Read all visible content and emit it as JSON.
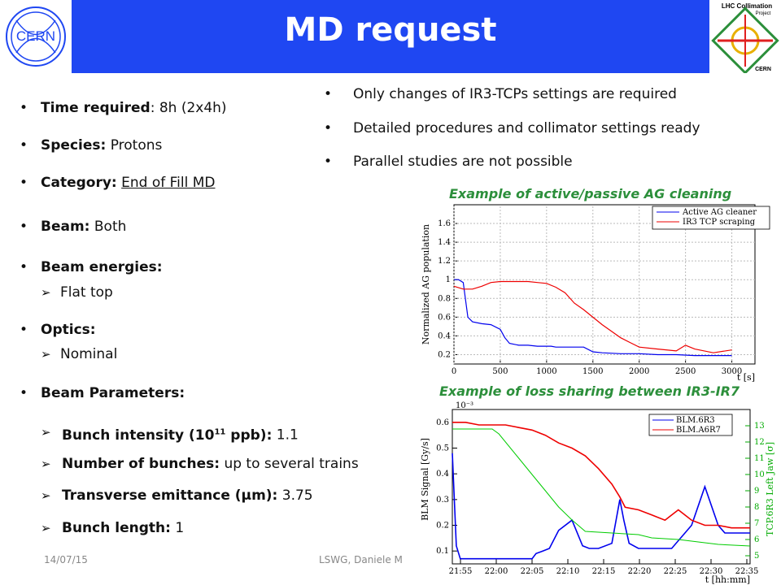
{
  "header": {
    "title": "MD request"
  },
  "logos": {
    "left_text": "CERN",
    "right_line1": "LHC Collimation",
    "right_line2": "Project",
    "right_line3": "CERN"
  },
  "left_list": {
    "time_label": "Time required",
    "time_value": ": 8h (2x4h)",
    "species_label": "Species:",
    "species_value": " Protons",
    "category_label": "Category:",
    "category_value": "End of Fill MD",
    "beam_label": "Beam:",
    "beam_value": " Both",
    "energies_label": "Beam energies:",
    "energies_sub": "Flat top",
    "optics_label": "Optics:",
    "optics_sub": "Nominal",
    "params_label": "Beam Parameters:",
    "bunch_int_label": "Bunch intensity (10",
    "bunch_int_sup": "11",
    "bunch_int_label2": " ppb):",
    "bunch_int_value": " 1.1",
    "nbunch_label": "Number of bunches:",
    "nbunch_value": " up to several trains",
    "emit_label": "Transverse emittance (μm):",
    "emit_value": " 3.75",
    "blen_label": "Bunch length:",
    "blen_value": " 1"
  },
  "right_list": [
    "Only changes of IR3-TCPs settings are required",
    "Detailed procedures and collimator settings ready",
    "Parallel studies are not possible"
  ],
  "footer": {
    "date": "14/07/15",
    "author": "LSWG, Daniele M"
  },
  "colors": {
    "banner": "#1f47f2",
    "caption": "#2c8f3b",
    "series_blue": "#0000ee",
    "series_red": "#ee0000",
    "series_green": "#00cc00"
  },
  "chart_data": [
    {
      "type": "line",
      "title": "Example of active/passive AG cleaning",
      "xlabel": "t [s]",
      "ylabel": "Normalized AG population",
      "xlim": [
        0,
        3250
      ],
      "ylim": [
        0.1,
        1.8
      ],
      "x_ticks": [
        0,
        500,
        1000,
        1500,
        2000,
        2500,
        3000
      ],
      "y_ticks": [
        0.2,
        0.4,
        0.6,
        0.8,
        1,
        1.2,
        1.4,
        1.6
      ],
      "legend": "top-right",
      "series": [
        {
          "name": "Active AG cleaner",
          "color": "#0000ee",
          "x": [
            0,
            50,
            100,
            150,
            200,
            300,
            400,
            500,
            550,
            600,
            700,
            800,
            900,
            1000,
            1050,
            1100,
            1200,
            1300,
            1400,
            1500,
            1600,
            1800,
            2000,
            2200,
            2400,
            2600,
            2800,
            3000
          ],
          "y": [
            1.0,
            1.0,
            0.97,
            0.6,
            0.55,
            0.53,
            0.52,
            0.47,
            0.38,
            0.32,
            0.3,
            0.3,
            0.29,
            0.29,
            0.29,
            0.28,
            0.28,
            0.28,
            0.28,
            0.23,
            0.22,
            0.21,
            0.21,
            0.2,
            0.2,
            0.19,
            0.19,
            0.19
          ]
        },
        {
          "name": "IR3 TCP scraping",
          "color": "#ee0000",
          "x": [
            0,
            100,
            200,
            300,
            400,
            500,
            600,
            700,
            800,
            900,
            1000,
            1100,
            1200,
            1300,
            1400,
            1500,
            1600,
            1700,
            1800,
            1900,
            2000,
            2200,
            2400,
            2500,
            2600,
            2800,
            3000
          ],
          "y": [
            0.93,
            0.9,
            0.9,
            0.93,
            0.97,
            0.98,
            0.98,
            0.98,
            0.98,
            0.97,
            0.96,
            0.92,
            0.86,
            0.75,
            0.68,
            0.6,
            0.52,
            0.45,
            0.38,
            0.33,
            0.28,
            0.26,
            0.24,
            0.3,
            0.26,
            0.22,
            0.25
          ]
        }
      ]
    },
    {
      "type": "line",
      "title": "Example of loss sharing between IR3-IR7",
      "xlabel": "t [hh:mm]",
      "ylabel": "BLM Signal [Gy/s]",
      "y2label": "TCP.6R3 Left Jaw [σ]",
      "y_multiplier": "10⁻³",
      "categories": [
        "21:55",
        "22:00",
        "22:05",
        "22:10",
        "22:15",
        "22:20",
        "22:25",
        "22:30",
        "22:35"
      ],
      "ylim": [
        0.05,
        0.65
      ],
      "y_ticks": [
        0.1,
        0.2,
        0.3,
        0.4,
        0.5,
        0.6
      ],
      "y2lim": [
        4.5,
        14
      ],
      "y2_ticks": [
        5,
        6,
        7,
        8,
        9,
        10,
        11,
        12,
        13
      ],
      "legend": "top-right",
      "series": [
        {
          "name": "BLM.6R3",
          "color": "#0000ee",
          "axis": "left",
          "x": [
            0,
            0.3,
            0.6,
            1,
            2,
            3,
            4,
            5,
            6,
            6.3,
            6.8,
            7.3,
            8,
            9,
            9.8,
            10.3,
            11,
            12,
            12.6,
            12.9,
            13.3,
            14,
            15.5,
            16.5,
            18,
            19,
            20,
            20.5,
            21.5,
            22.4
          ],
          "y": [
            0.48,
            0.12,
            0.07,
            0.07,
            0.07,
            0.07,
            0.07,
            0.07,
            0.07,
            0.09,
            0.1,
            0.11,
            0.18,
            0.22,
            0.12,
            0.11,
            0.11,
            0.13,
            0.3,
            0.22,
            0.13,
            0.11,
            0.11,
            0.11,
            0.2,
            0.35,
            0.2,
            0.17,
            0.17,
            0.17
          ]
        },
        {
          "name": "BLM.A6R7",
          "color": "#ee0000",
          "axis": "left",
          "x": [
            0,
            1,
            2,
            3,
            4,
            5,
            6,
            7,
            8,
            9,
            10,
            11,
            12,
            12.6,
            13,
            14,
            15,
            16,
            17,
            18,
            19,
            20,
            21,
            22.4
          ],
          "y": [
            0.6,
            0.6,
            0.59,
            0.59,
            0.59,
            0.58,
            0.57,
            0.55,
            0.52,
            0.5,
            0.47,
            0.42,
            0.36,
            0.31,
            0.27,
            0.26,
            0.24,
            0.22,
            0.26,
            0.22,
            0.2,
            0.2,
            0.19,
            0.19
          ]
        },
        {
          "name": "",
          "color": "#00cc00",
          "axis": "right",
          "x": [
            0,
            1,
            2,
            3,
            3.5,
            5,
            6,
            7,
            8,
            9,
            10,
            12,
            14,
            15,
            17,
            18,
            19,
            20,
            22.4
          ],
          "y": [
            12.8,
            12.8,
            12.8,
            12.8,
            12.5,
            11,
            10,
            9,
            8,
            7.2,
            6.5,
            6.4,
            6.3,
            6.1,
            6.0,
            5.9,
            5.8,
            5.7,
            5.6
          ]
        }
      ]
    }
  ]
}
